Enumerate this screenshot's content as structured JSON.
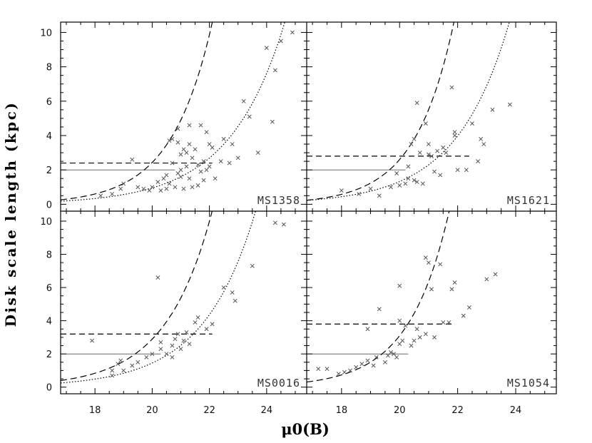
{
  "chart_data": {
    "type": "scatter",
    "xlabel": "μ0(B)",
    "ylabel": "Disk scale length (kpc)",
    "xlim": [
      16.8,
      25.4
    ],
    "ylim": [
      -0.4,
      10.6
    ],
    "x_ticks": [
      18,
      20,
      22,
      24
    ],
    "y_ticks": [
      0,
      2,
      4,
      6,
      8,
      10
    ],
    "grid": false,
    "legend": "none",
    "marker": "x",
    "colors": {
      "points": "#555555",
      "lines": "#000000",
      "frame": "#000000"
    },
    "panels": [
      {
        "name": "MS1358",
        "solid_h": {
          "y": 2.0,
          "x": [
            16.8,
            20.8
          ]
        },
        "dashed_h": {
          "y": 2.4,
          "x": [
            16.8,
            22.1
          ]
        },
        "dashed_curve": {
          "a": 0.6,
          "b": 0.7,
          "x0": 18.0
        },
        "dotted_curve": {
          "a": 0.2,
          "b": 0.52,
          "x0": 17.0
        },
        "points": [
          [
            18.2,
            0.5
          ],
          [
            18.6,
            0.6
          ],
          [
            18.9,
            0.9
          ],
          [
            19.0,
            1.2
          ],
          [
            19.3,
            2.6
          ],
          [
            19.5,
            1.0
          ],
          [
            19.7,
            0.9
          ],
          [
            19.9,
            0.8
          ],
          [
            20.0,
            1.0
          ],
          [
            20.2,
            1.3
          ],
          [
            20.3,
            0.8
          ],
          [
            20.4,
            1.5
          ],
          [
            20.5,
            1.7
          ],
          [
            20.5,
            0.9
          ],
          [
            20.6,
            3.7
          ],
          [
            20.6,
            1.2
          ],
          [
            20.7,
            3.8
          ],
          [
            20.7,
            2.4
          ],
          [
            20.8,
            1.0
          ],
          [
            20.9,
            4.4
          ],
          [
            20.9,
            1.8
          ],
          [
            20.9,
            3.6
          ],
          [
            21.0,
            2.0
          ],
          [
            21.0,
            2.9
          ],
          [
            21.0,
            1.6
          ],
          [
            21.1,
            3.2
          ],
          [
            21.1,
            0.9
          ],
          [
            21.2,
            3.0
          ],
          [
            21.2,
            2.2
          ],
          [
            21.3,
            4.6
          ],
          [
            21.3,
            3.5
          ],
          [
            21.3,
            1.5
          ],
          [
            21.4,
            2.7
          ],
          [
            21.4,
            1.0
          ],
          [
            21.5,
            3.2
          ],
          [
            21.6,
            2.3
          ],
          [
            21.6,
            1.1
          ],
          [
            21.7,
            4.6
          ],
          [
            21.7,
            1.9
          ],
          [
            21.8,
            2.5
          ],
          [
            21.8,
            1.4
          ],
          [
            21.9,
            2.0
          ],
          [
            21.9,
            4.2
          ],
          [
            22.0,
            3.5
          ],
          [
            22.0,
            2.2
          ],
          [
            22.1,
            3.3
          ],
          [
            22.2,
            1.5
          ],
          [
            22.4,
            2.5
          ],
          [
            22.5,
            3.8
          ],
          [
            22.7,
            2.4
          ],
          [
            22.8,
            3.5
          ],
          [
            23.0,
            2.7
          ],
          [
            23.2,
            6.0
          ],
          [
            23.4,
            5.1
          ],
          [
            23.7,
            3.0
          ],
          [
            24.0,
            9.1
          ],
          [
            24.2,
            4.8
          ],
          [
            24.3,
            7.8
          ],
          [
            24.5,
            9.5
          ],
          [
            24.9,
            10.0
          ]
        ]
      },
      {
        "name": "MS1621",
        "solid_h": {
          "y": 2.0,
          "x": [
            16.8,
            20.2
          ]
        },
        "dashed_h": {
          "y": 2.8,
          "x": [
            16.8,
            22.4
          ]
        },
        "dashed_curve": {
          "a": 0.5,
          "b": 0.75,
          "x0": 17.8
        },
        "dotted_curve": {
          "a": 0.3,
          "b": 0.55,
          "x0": 17.3
        },
        "points": [
          [
            18.0,
            0.8
          ],
          [
            18.6,
            0.6
          ],
          [
            19.0,
            0.9
          ],
          [
            19.3,
            0.5
          ],
          [
            19.7,
            1.0
          ],
          [
            19.9,
            1.8
          ],
          [
            20.0,
            1.1
          ],
          [
            20.2,
            1.2
          ],
          [
            20.3,
            1.5
          ],
          [
            20.3,
            2.2
          ],
          [
            20.4,
            3.5
          ],
          [
            20.5,
            1.4
          ],
          [
            20.5,
            3.8
          ],
          [
            20.6,
            5.9
          ],
          [
            20.6,
            1.3
          ],
          [
            20.7,
            3.0
          ],
          [
            20.8,
            1.2
          ],
          [
            20.9,
            4.7
          ],
          [
            21.0,
            2.9
          ],
          [
            21.0,
            3.5
          ],
          [
            21.1,
            2.8
          ],
          [
            21.2,
            1.9
          ],
          [
            21.3,
            3.1
          ],
          [
            21.4,
            1.7
          ],
          [
            21.5,
            3.3
          ],
          [
            21.6,
            3.0
          ],
          [
            21.8,
            6.8
          ],
          [
            21.9,
            4.0
          ],
          [
            21.9,
            4.2
          ],
          [
            22.0,
            2.0
          ],
          [
            22.3,
            2.0
          ],
          [
            22.5,
            4.7
          ],
          [
            22.7,
            2.5
          ],
          [
            22.8,
            3.8
          ],
          [
            22.9,
            3.5
          ],
          [
            23.2,
            5.5
          ],
          [
            23.8,
            5.8
          ]
        ]
      },
      {
        "name": "MS0016",
        "solid_h": {
          "y": 2.0,
          "x": [
            16.8,
            20.3
          ]
        },
        "dashed_h": {
          "y": 3.2,
          "x": [
            16.8,
            22.1
          ]
        },
        "dashed_curve": {
          "a": 0.45,
          "b": 0.62,
          "x0": 17.0
        },
        "dotted_curve": {
          "a": 0.25,
          "b": 0.55,
          "x0": 16.8
        },
        "points": [
          [
            17.9,
            2.8
          ],
          [
            18.6,
            0.7
          ],
          [
            18.6,
            1.0
          ],
          [
            18.8,
            1.4
          ],
          [
            18.9,
            1.6
          ],
          [
            19.0,
            1.0
          ],
          [
            19.3,
            1.3
          ],
          [
            19.5,
            1.5
          ],
          [
            19.8,
            1.8
          ],
          [
            20.0,
            2.0
          ],
          [
            20.2,
            6.6
          ],
          [
            20.3,
            2.3
          ],
          [
            20.3,
            2.7
          ],
          [
            20.5,
            2.0
          ],
          [
            20.7,
            1.8
          ],
          [
            20.7,
            2.5
          ],
          [
            20.8,
            2.9
          ],
          [
            20.9,
            3.2
          ],
          [
            21.0,
            2.3
          ],
          [
            21.1,
            2.8
          ],
          [
            21.2,
            3.3
          ],
          [
            21.3,
            2.6
          ],
          [
            21.5,
            3.9
          ],
          [
            21.6,
            4.2
          ],
          [
            21.9,
            3.5
          ],
          [
            22.1,
            3.8
          ],
          [
            22.5,
            6.0
          ],
          [
            22.8,
            5.7
          ],
          [
            22.9,
            5.2
          ],
          [
            23.5,
            7.3
          ],
          [
            24.3,
            9.9
          ],
          [
            24.6,
            9.8
          ]
        ]
      },
      {
        "name": "MS1054",
        "solid_h": {
          "y": 2.0,
          "x": [
            16.8,
            20.3
          ]
        },
        "dashed_h": {
          "y": 3.8,
          "x": [
            16.8,
            21.8
          ]
        },
        "dashed_curve": {
          "a": 0.55,
          "b": 0.72,
          "x0": 17.6
        },
        "dotted_curve": null,
        "points": [
          [
            17.2,
            1.1
          ],
          [
            17.5,
            1.1
          ],
          [
            17.9,
            0.8
          ],
          [
            18.1,
            0.9
          ],
          [
            18.3,
            1.0
          ],
          [
            18.5,
            1.2
          ],
          [
            18.7,
            1.4
          ],
          [
            18.9,
            1.6
          ],
          [
            18.9,
            3.5
          ],
          [
            19.1,
            1.3
          ],
          [
            19.2,
            1.8
          ],
          [
            19.3,
            4.7
          ],
          [
            19.5,
            1.5
          ],
          [
            19.6,
            1.9
          ],
          [
            19.7,
            2.1
          ],
          [
            19.8,
            2.0
          ],
          [
            19.9,
            1.8
          ],
          [
            20.0,
            2.6
          ],
          [
            20.0,
            4.0
          ],
          [
            20.0,
            6.1
          ],
          [
            20.1,
            2.8
          ],
          [
            20.2,
            3.7
          ],
          [
            20.4,
            2.5
          ],
          [
            20.5,
            2.8
          ],
          [
            20.6,
            3.5
          ],
          [
            20.7,
            3.0
          ],
          [
            20.9,
            3.2
          ],
          [
            20.9,
            7.8
          ],
          [
            21.0,
            7.5
          ],
          [
            21.1,
            5.9
          ],
          [
            21.2,
            3.0
          ],
          [
            21.4,
            7.4
          ],
          [
            21.5,
            3.9
          ],
          [
            21.7,
            3.9
          ],
          [
            21.8,
            5.9
          ],
          [
            21.9,
            6.3
          ],
          [
            22.2,
            4.3
          ],
          [
            22.4,
            4.8
          ],
          [
            23.0,
            6.5
          ],
          [
            23.3,
            6.8
          ]
        ]
      }
    ]
  }
}
